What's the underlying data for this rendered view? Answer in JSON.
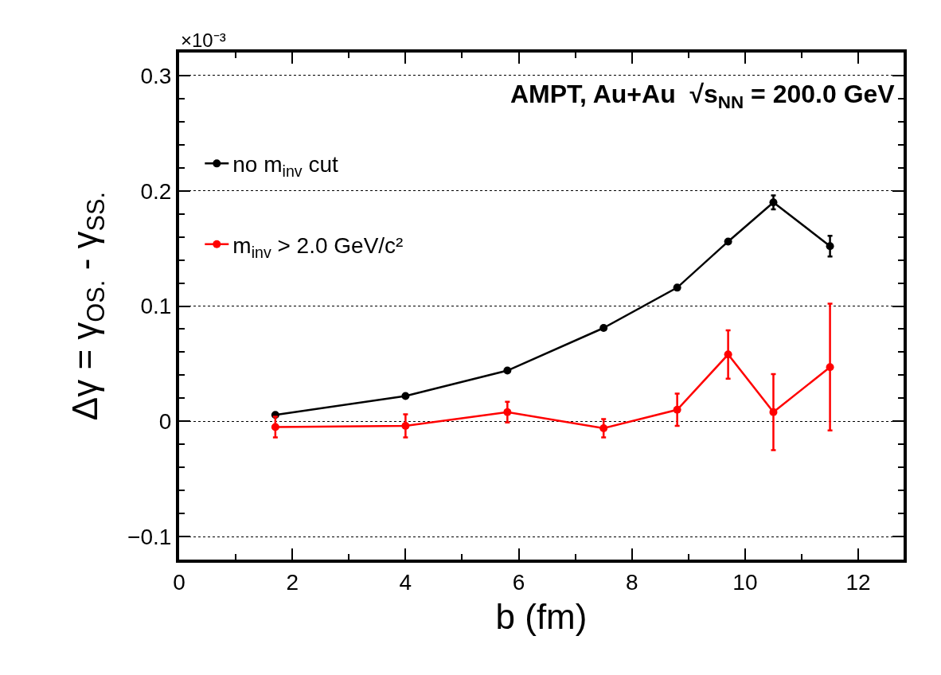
{
  "chart_data": {
    "type": "line",
    "xlabel": "b (fm)",
    "ylabel": "Δγ = γ$_{OS.}$ - γ$_{SS.}$",
    "annotations": [
      "AMPT, Au+Au  √s$_{NN}$ = 200.0 GeV",
      "×10⁻³"
    ],
    "x": [
      1.7,
      4.0,
      5.8,
      7.5,
      8.8,
      9.7,
      10.5,
      11.5
    ],
    "series": [
      {
        "name": "no m$_{inv}$ cut",
        "color": "#000000",
        "values": [
          0.0055,
          0.022,
          0.044,
          0.081,
          0.116,
          0.156,
          0.19,
          0.152
        ],
        "errors": [
          null,
          null,
          null,
          null,
          null,
          null,
          0.006,
          0.009
        ]
      },
      {
        "name": "m$_{inv}$ > 2.0 GeV/c²",
        "color": "#ff0000",
        "values": [
          -0.005,
          -0.004,
          0.008,
          -0.006,
          0.01,
          0.058,
          0.008,
          0.047
        ],
        "errors": [
          0.009,
          0.01,
          0.009,
          0.008,
          0.014,
          0.021,
          0.033,
          0.055
        ]
      }
    ],
    "xlim": [
      0,
      12.8
    ],
    "xticks": [
      0,
      2,
      4,
      6,
      8,
      10,
      12
    ],
    "ylim": [
      -0.12,
      0.32
    ],
    "yticks": [
      {
        "value": -0.1,
        "label": "−0.1"
      },
      0,
      0.1,
      0.2,
      0.3
    ],
    "grid": "y",
    "legend": "top left",
    "marker": "circle",
    "line_style": "solid"
  }
}
